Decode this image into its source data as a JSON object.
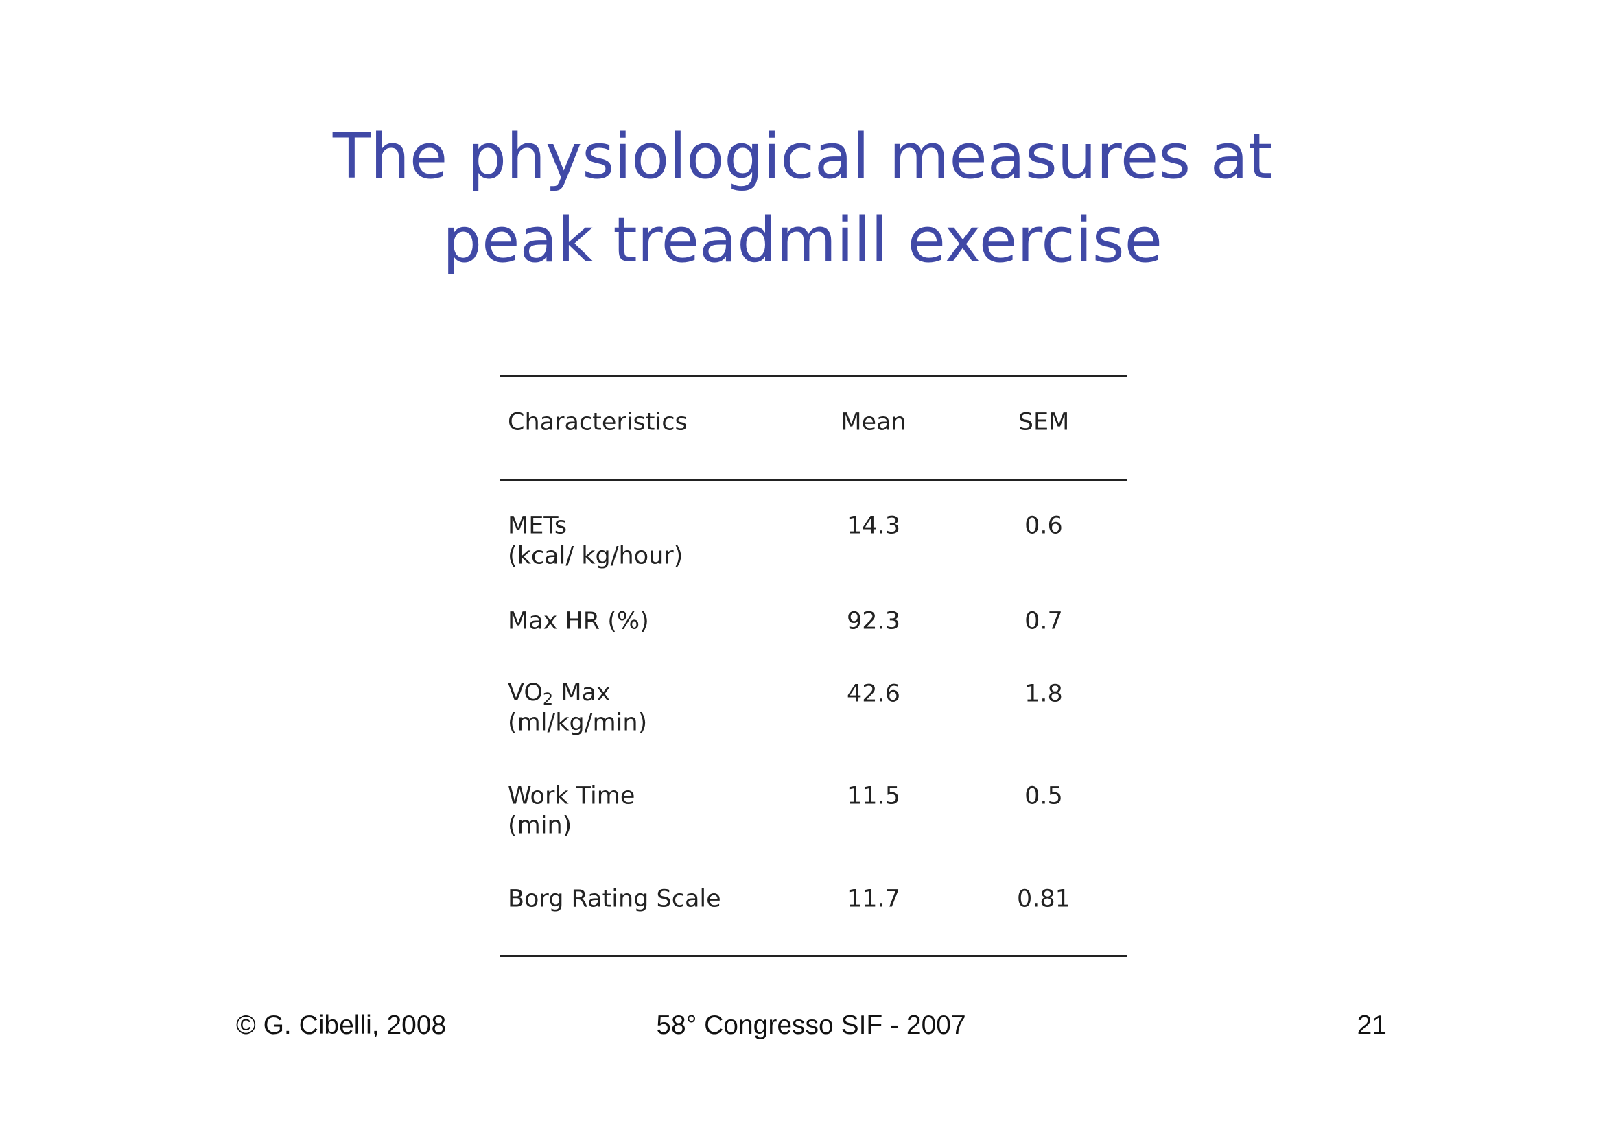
{
  "header": {
    "title_line1": "The physiological measures at",
    "title_line2": "peak treadmill exercise"
  },
  "table": {
    "columns": [
      "Characteristics",
      "Mean",
      "SEM"
    ],
    "rows": [
      {
        "label": "METs",
        "unit": "(kcal/ kg/hour)",
        "mean": "14.3",
        "sem": "0.6"
      },
      {
        "label": "Max HR (%)",
        "mean": "92.3",
        "sem": "0.7"
      },
      {
        "label": "VO",
        "label_sub": "2",
        "label_rest": "Max",
        "unit": "(ml/kg/min)",
        "mean": "42.6",
        "sem": "1.8"
      },
      {
        "label": "Work Time",
        "unit": "(min)",
        "mean": "11.5",
        "sem": "0.5"
      },
      {
        "label": "Borg Rating Scale",
        "mean": "11.7",
        "sem": "0.81"
      }
    ]
  },
  "footer": {
    "left": "© G. Cibelli, 2008",
    "center": "58° Congresso SIF - 2007",
    "right": "21"
  }
}
